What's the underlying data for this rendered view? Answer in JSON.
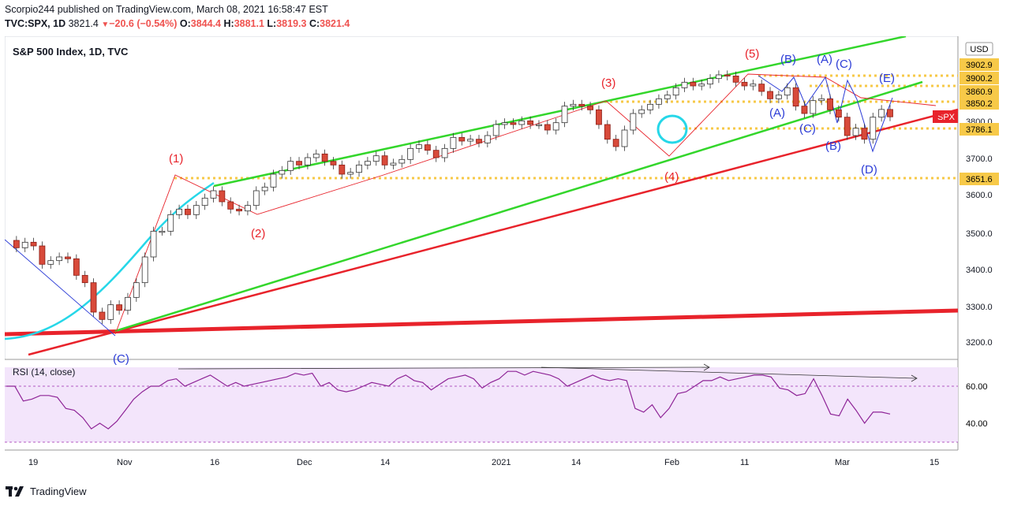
{
  "header": {
    "line1": "Scorpio244 published on TradingView.com, March 08, 2021 16:58:47 EST",
    "symbol": "TVC:SPX, 1D",
    "last": "3821.4",
    "change": "−20.6 (−0.54%)",
    "o_label": "O:",
    "o": "3844.4",
    "h_label": "H:",
    "h": "3881.1",
    "l_label": "L:",
    "l": "3819.3",
    "c_label": "C:",
    "c": "3821.4"
  },
  "chart": {
    "title": "S&P 500 Index, 1D, TVC",
    "currency": "USD",
    "price_axis": [
      "3800.0",
      "3700.0",
      "3600.0",
      "3500.0",
      "3400.0",
      "3300.0",
      "3200.0"
    ],
    "price_tags": [
      {
        "label": "3902.9",
        "color": "#f7c948"
      },
      {
        "label": "3900.2",
        "color": "#f7c948"
      },
      {
        "label": "3860.9",
        "color": "#f7c948"
      },
      {
        "label": "3850.2",
        "color": "#f7c948"
      },
      {
        "label": "3786.1",
        "color": "#f7c948"
      },
      {
        "label": "3651.6",
        "color": "#f7c948"
      },
      {
        "label": "SPX",
        "color": "#ef5350"
      }
    ],
    "time_axis": [
      "19",
      "Nov",
      "16",
      "Dec",
      "14",
      "2021",
      "14",
      "Feb",
      "11",
      "Mar",
      "15"
    ],
    "wave_labels": [
      "(1)",
      "(2)",
      "(3)",
      "(4)",
      "(5)",
      "(A)",
      "(B)",
      "(C)",
      "(A)",
      "(B)",
      "(C)",
      "(D)",
      "(E)",
      "(C)"
    ],
    "colors": {
      "up": "#ffffff",
      "down": "#d84a3a",
      "upline": "#333",
      "accent_red": "#e8232b",
      "accent_green": "#33d62b",
      "accent_cyan": "#26d7e8",
      "accent_yellow": "#f7c948",
      "wave_blue": "#2b3bd6",
      "rsi": "#8e2497",
      "rsi_bg": "#f3e5fb"
    }
  },
  "rsi": {
    "title": "RSI (14, close)",
    "levels": [
      "60.00",
      "40.00"
    ],
    "values": [
      60,
      60,
      52,
      53,
      55,
      55,
      54,
      48,
      47,
      43,
      37,
      40,
      37,
      41,
      47,
      53,
      57,
      60,
      60,
      63,
      64,
      60,
      62,
      64,
      66,
      63,
      60,
      62,
      60,
      61,
      62,
      63,
      64,
      65,
      67,
      66,
      67,
      60,
      62,
      58,
      57,
      58,
      60,
      62,
      61,
      60,
      64,
      66,
      63,
      62,
      58,
      61,
      64,
      65,
      66,
      64,
      59,
      62,
      64,
      68,
      68,
      66,
      68,
      67,
      66,
      64,
      60,
      62,
      64,
      66,
      64,
      63,
      64,
      63,
      48,
      46,
      50,
      43,
      48,
      56,
      57,
      60,
      63,
      63,
      65,
      63,
      64,
      65,
      66,
      66,
      65,
      59,
      58,
      55,
      56,
      64,
      55,
      45,
      44,
      53,
      47,
      40,
      46,
      46,
      45
    ]
  }
}
